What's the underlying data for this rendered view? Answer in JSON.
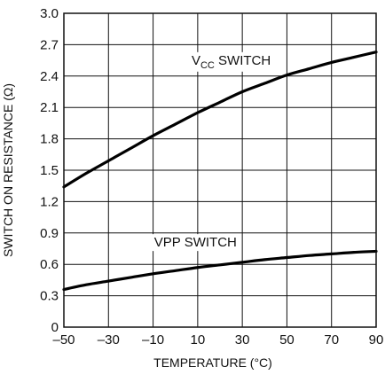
{
  "chart_data": {
    "type": "line",
    "title": "",
    "xlabel": "TEMPERATURE (°C)",
    "ylabel": "SWITCH ON RESISTANCE (Ω)",
    "xlim": [
      -50,
      90
    ],
    "ylim": [
      0,
      3.0
    ],
    "x_ticks": [
      -50,
      -30,
      -10,
      10,
      30,
      50,
      70,
      90
    ],
    "y_ticks": [
      0,
      0.3,
      0.6,
      0.9,
      1.2,
      1.5,
      1.8,
      2.1,
      2.4,
      2.7,
      3.0
    ],
    "x_tick_labels": [
      "–50",
      "–30",
      "–10",
      "10",
      "30",
      "50",
      "70",
      "90"
    ],
    "y_tick_labels": [
      "0",
      "0.3",
      "0.6",
      "0.9",
      "1.2",
      "1.5",
      "1.8",
      "2.1",
      "2.4",
      "2.7",
      "3.0"
    ],
    "grid": true,
    "legend": "none",
    "series": [
      {
        "label_main": "V",
        "label_sub": "CC",
        "label_rest": " SWITCH",
        "label_at": {
          "x": 25,
          "y": 2.51
        },
        "color": "#000000",
        "x": [
          -50,
          -40,
          -30,
          -20,
          -10,
          0,
          10,
          20,
          30,
          40,
          50,
          60,
          70,
          80,
          90
        ],
        "y": [
          1.34,
          1.47,
          1.59,
          1.71,
          1.83,
          1.94,
          2.05,
          2.15,
          2.25,
          2.33,
          2.41,
          2.47,
          2.53,
          2.58,
          2.63
        ]
      },
      {
        "label_main": "VPP SWITCH",
        "label_sub": "",
        "label_rest": "",
        "label_at": {
          "x": 9,
          "y": 0.77
        },
        "color": "#000000",
        "x": [
          -50,
          -40,
          -30,
          -20,
          -10,
          0,
          10,
          20,
          30,
          40,
          50,
          60,
          70,
          80,
          90
        ],
        "y": [
          0.36,
          0.405,
          0.44,
          0.475,
          0.51,
          0.54,
          0.57,
          0.595,
          0.62,
          0.645,
          0.665,
          0.685,
          0.7,
          0.715,
          0.725
        ]
      }
    ]
  }
}
